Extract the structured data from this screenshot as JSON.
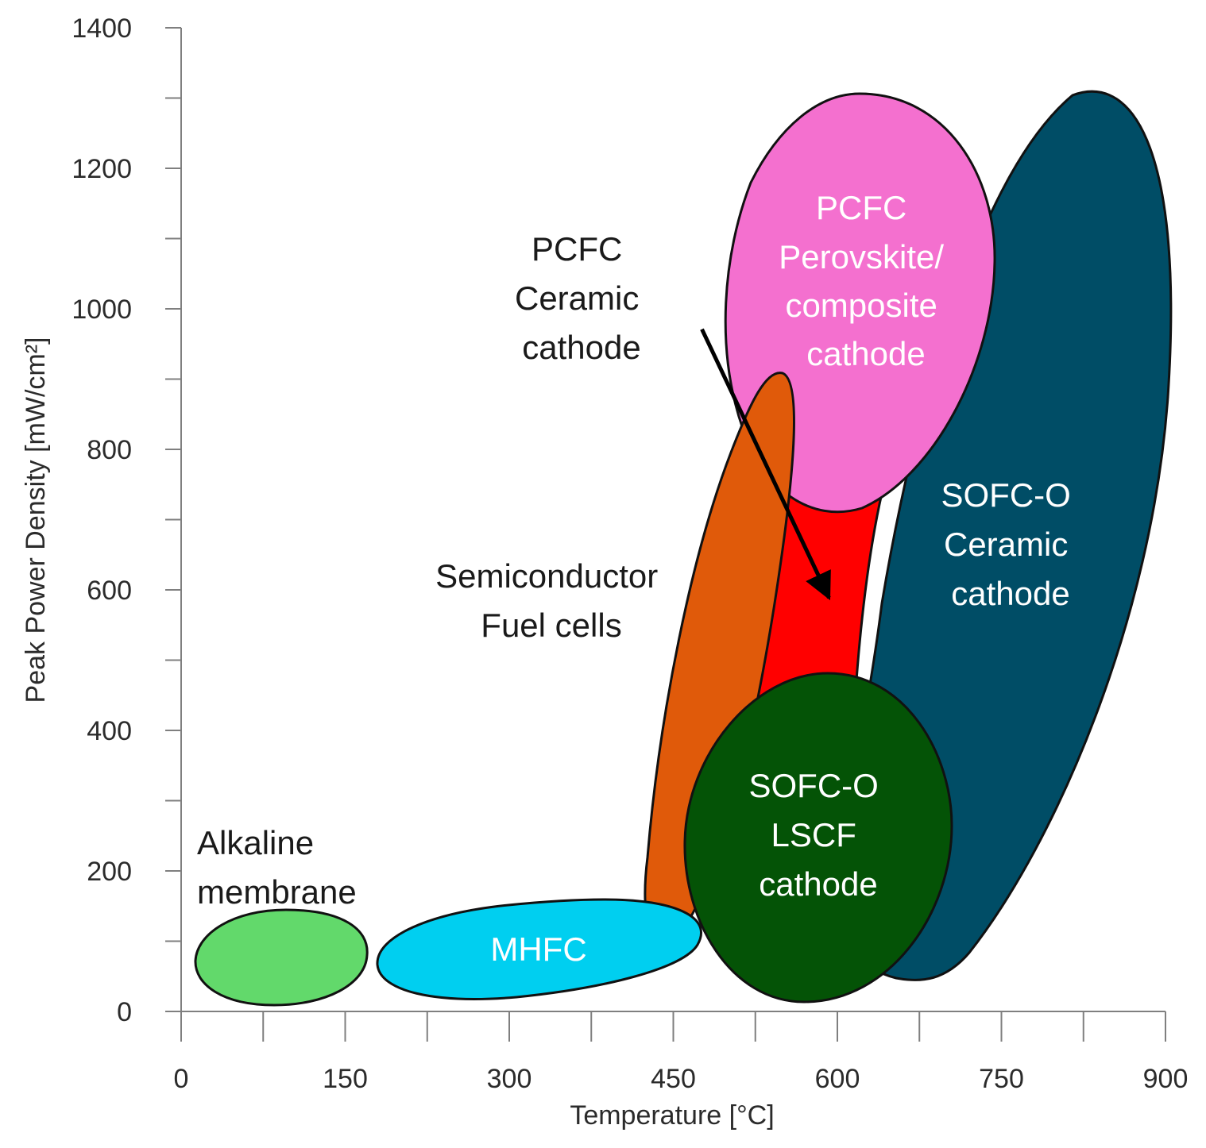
{
  "chart_data": {
    "type": "region",
    "xlabel": "Temperature [°C]",
    "ylabel": "Peak Power Density [mW/cm²]",
    "xlim": [
      0,
      900
    ],
    "ylim": [
      0,
      1400
    ],
    "xticks": [
      "0",
      "150",
      "300",
      "450",
      "600",
      "750",
      "900"
    ],
    "yticks": [
      "0",
      "200",
      "400",
      "600",
      "800",
      "1000",
      "1200",
      "1400"
    ],
    "regions": [
      {
        "name": "SOFC-O Ceramic cathode",
        "label_lines": [
          "SOFC-O",
          "Ceramic",
          "cathode"
        ],
        "label_color": "#ffffff",
        "color": "#004d66",
        "shape": "rotated-ellipse",
        "center": [
          745,
          680
        ],
        "x_extent": [
          605,
          905
        ],
        "y_extent": [
          50,
          1305
        ]
      },
      {
        "name": "PCFC Ceramic cathode",
        "label_lines": [],
        "color": "#ff0000",
        "shape": "band",
        "x_extent": [
          525,
          640
        ],
        "y_extent": [
          420,
          720
        ]
      },
      {
        "name": "PCFC Perovskite/composite cathode",
        "label_lines": [
          "PCFC",
          "Perovskite/",
          "composite",
          "cathode"
        ],
        "label_color": "#ffffff",
        "color": "#f470cf",
        "shape": "ellipse",
        "center": [
          627,
          1010
        ],
        "x_extent": [
          495,
          758
        ],
        "y_extent": [
          710,
          1305
        ]
      },
      {
        "name": "Semiconductor Fuel cells",
        "label_lines": [],
        "color": "#e05a0a",
        "shape": "rotated-ellipse",
        "center": [
          490,
          500
        ],
        "x_extent": [
          425,
          560
        ],
        "y_extent": [
          90,
          910
        ]
      },
      {
        "name": "SOFC-O LSCF cathode",
        "label_lines": [
          "SOFC-O",
          "LSCF",
          "cathode"
        ],
        "label_color": "#ffffff",
        "color": "#045306",
        "shape": "ellipse",
        "center": [
          598,
          255
        ],
        "x_extent": [
          474,
          722
        ],
        "y_extent": [
          12,
          478
        ]
      },
      {
        "name": "MHFC",
        "label_lines": [
          "MHFC"
        ],
        "label_color": "#ffffff",
        "color": "#00cff0",
        "shape": "rotated-ellipse",
        "center": [
          333,
          90
        ],
        "x_extent": [
          180,
          475
        ],
        "y_extent": [
          15,
          160
        ]
      },
      {
        "name": "Alkaline membrane",
        "label_lines": [],
        "color": "#62d96b",
        "shape": "ellipse",
        "center": [
          92,
          77
        ],
        "x_extent": [
          15,
          170
        ],
        "y_extent": [
          8,
          144
        ]
      }
    ],
    "annotations": [
      {
        "name": "alkaline-membrane-label",
        "lines": [
          "Alkaline",
          "membrane"
        ],
        "at": [
          15,
          170
        ],
        "color": "#1a1a1a"
      },
      {
        "name": "semiconductor-label",
        "lines": [
          "Semiconductor",
          "Fuel cells"
        ],
        "at": [
          337,
          570
        ],
        "color": "#1a1a1a"
      },
      {
        "name": "pcfc-ceramic-label",
        "lines": [
          "PCFC",
          "Ceramic",
          "cathode"
        ],
        "at": [
          365,
          1080
        ],
        "color": "#1a1a1a"
      }
    ],
    "arrow": {
      "from": [
        450,
        980
      ],
      "to": [
        588,
        600
      ],
      "points_to": "PCFC Ceramic cathode"
    }
  }
}
